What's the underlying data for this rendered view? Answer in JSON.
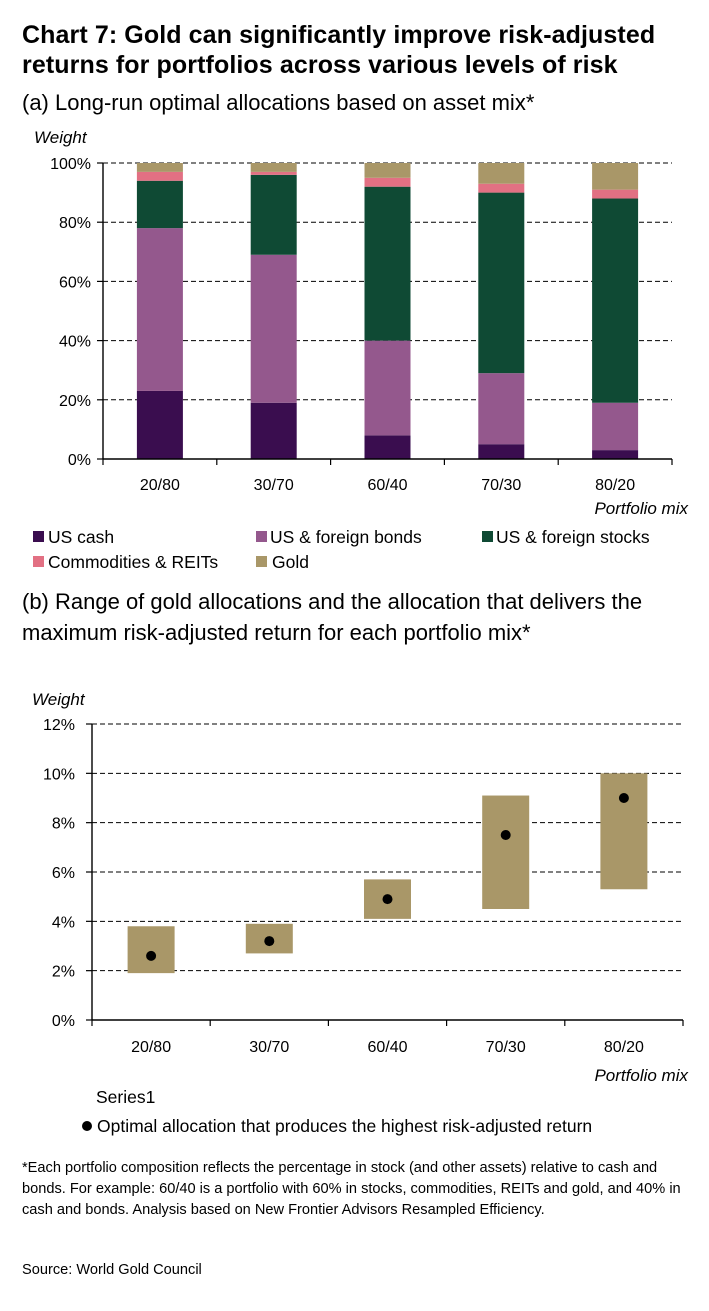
{
  "title": "Chart 7: Gold can significantly improve risk-adjusted returns for portfolios across various levels of risk",
  "footnote": "*Each portfolio composition reflects the percentage in stock (and other assets) relative to cash and bonds. For example: 60/40 is a portfolio with 60% in stocks, commodities, REITs and gold, and 40% in cash and bonds. Analysis based on New Frontier Advisors Resampled Efficiency.",
  "source": "Source: World Gold Council",
  "colors": {
    "us_cash": "#3a0d4f",
    "bonds": "#94588d",
    "stocks": "#0f4a34",
    "commodities": "#e27083",
    "gold": "#a99768",
    "dot": "#000000",
    "grid": "#000000"
  },
  "chart_data": [
    {
      "type": "bar",
      "stacked": true,
      "title": "(a) Long-run optimal allocations based on asset mix*",
      "ylabel": "Weight",
      "xlabel": "Portfolio mix",
      "ylim": [
        0,
        100
      ],
      "yticks": [
        "0%",
        "20%",
        "40%",
        "60%",
        "80%",
        "100%"
      ],
      "categories": [
        "20/80",
        "30/70",
        "60/40",
        "70/30",
        "80/20"
      ],
      "series": [
        {
          "name": "US cash",
          "values": [
            23,
            19,
            8,
            5,
            3
          ]
        },
        {
          "name": "US & foreign bonds",
          "values": [
            55,
            50,
            32,
            24,
            16
          ]
        },
        {
          "name": "US & foreign stocks",
          "values": [
            16,
            27,
            52,
            61,
            69
          ]
        },
        {
          "name": "Commodities & REITs",
          "values": [
            3,
            1,
            3,
            3,
            3
          ]
        },
        {
          "name": "Gold",
          "values": [
            3,
            3,
            5,
            7,
            9
          ]
        }
      ],
      "legend": [
        "US cash",
        "US & foreign bonds",
        "US & foreign stocks",
        "Commodities & REITs",
        "Gold"
      ],
      "legend_position": "bottom"
    },
    {
      "type": "range",
      "title": "(b) Range of gold allocations and the allocation that delivers the maximum risk-adjusted return for each portfolio mix*",
      "ylabel": "Weight",
      "xlabel": "Portfolio mix",
      "ylim": [
        0,
        12
      ],
      "yticks": [
        "0%",
        "2%",
        "4%",
        "6%",
        "8%",
        "10%",
        "12%"
      ],
      "categories": [
        "20/80",
        "30/70",
        "60/40",
        "70/30",
        "80/20"
      ],
      "ranges": [
        [
          1.9,
          3.8
        ],
        [
          2.7,
          3.9
        ],
        [
          4.1,
          5.7
        ],
        [
          4.5,
          9.1
        ],
        [
          5.3,
          10.0
        ]
      ],
      "optimal": [
        2.6,
        3.2,
        4.9,
        7.5,
        9.0
      ],
      "legend": [
        "Series1",
        "Optimal allocation that produces the highest risk-adjusted return"
      ],
      "legend_position": "bottom"
    }
  ]
}
